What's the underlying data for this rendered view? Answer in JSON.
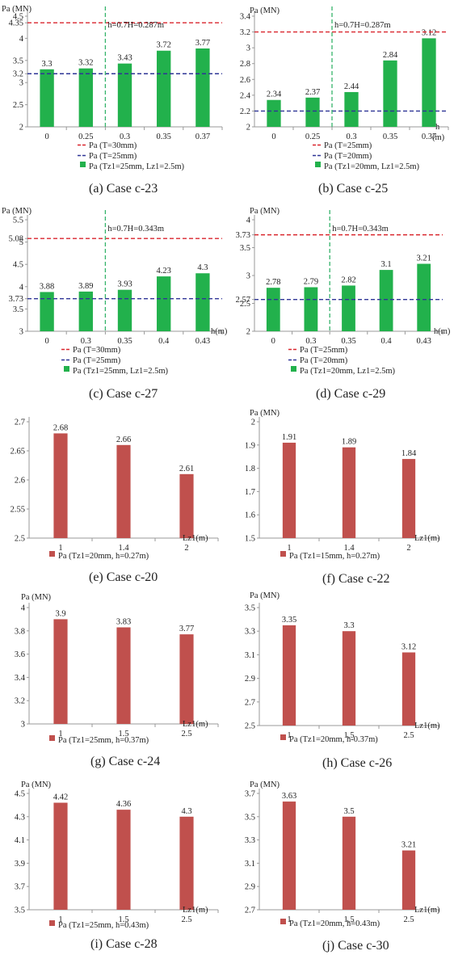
{
  "colors": {
    "green_bar": "#22b14c",
    "red_bar": "#c0504d",
    "red_line": "#d9262e",
    "blue_line": "#2f3596",
    "green_line": "#35b36a",
    "axis": "#999999",
    "grid": "#d9d9d9"
  },
  "chart_data": [
    {
      "id": "a",
      "type": "bar",
      "caption": "(a) Case c-23",
      "ylabel": "Pa (MN)",
      "xlabel": "",
      "yticks": [
        "2",
        "2.5",
        "3",
        "3.2",
        "3.5",
        "4",
        "4.35",
        "4.5"
      ],
      "ylim": [
        2,
        4.5
      ],
      "categories": [
        "0",
        "0.25",
        "0.3",
        "0.35",
        "0.37"
      ],
      "values": [
        3.3,
        3.32,
        3.43,
        3.72,
        3.77
      ],
      "value_labels": [
        "3.3",
        "3.32",
        "3.43",
        "3.72",
        "3.77"
      ],
      "ref_lines": [
        {
          "name": "Pa (T=30mm)",
          "value": 4.35,
          "color": "red"
        },
        {
          "name": "Pa (T=25mm)",
          "value": 3.2,
          "color": "blue"
        }
      ],
      "vline": {
        "label": "h=0.7H=0.287m",
        "position_between": [
          1,
          2
        ]
      },
      "bar_legend": "Pa (Tz1=25mm, Lz1=2.5m)",
      "bar_color": "green"
    },
    {
      "id": "b",
      "type": "bar",
      "caption": "(b) Case c-25",
      "ylabel": "Pa (MN)",
      "xlabel": "h\n(m)",
      "yticks": [
        "2",
        "2.2",
        "2.4",
        "2.6",
        "2.8",
        "3",
        "3.2",
        "3.4"
      ],
      "ylim": [
        2,
        3.4
      ],
      "categories": [
        "0",
        "0.25",
        "0.3",
        "0.35",
        "0.37"
      ],
      "values": [
        2.34,
        2.37,
        2.44,
        2.84,
        3.12
      ],
      "value_labels": [
        "2.34",
        "2.37",
        "2.44",
        "2.84",
        "3.12"
      ],
      "ref_lines": [
        {
          "name": "Pa (T=25mm)",
          "value": 3.2,
          "color": "red"
        },
        {
          "name": "Pa (T=20mm)",
          "value": 2.2,
          "color": "blue"
        }
      ],
      "vline": {
        "label": "h=0.7H=0.287m",
        "position_between": [
          1,
          2
        ]
      },
      "bar_legend": "Pa (Tz1=20mm, Lz1=2.5m)",
      "bar_color": "green"
    },
    {
      "id": "c",
      "type": "bar",
      "caption": "(c) Case c-27",
      "ylabel": "Pa (MN)",
      "xlabel": "h(m)",
      "yticks": [
        "3",
        "3.5",
        "3.73",
        "4",
        "4.5",
        "5",
        "5.08",
        "5.5"
      ],
      "ylim": [
        3,
        5.5
      ],
      "categories": [
        "0",
        "0.3",
        "0.35",
        "0.4",
        "0.43"
      ],
      "values": [
        3.88,
        3.89,
        3.93,
        4.23,
        4.3
      ],
      "value_labels": [
        "3.88",
        "3.89",
        "3.93",
        "4.23",
        "4.3"
      ],
      "ref_lines": [
        {
          "name": "Pa (T=30mm)",
          "value": 5.08,
          "color": "red"
        },
        {
          "name": "Pa (T=25mm)",
          "value": 3.73,
          "color": "blue"
        }
      ],
      "vline": {
        "label": "h=0.7H=0.343m",
        "position_between": [
          1,
          2
        ]
      },
      "bar_legend": "Pa (Tz1=25mm, Lz1=2.5m)",
      "bar_color": "green"
    },
    {
      "id": "d",
      "type": "bar",
      "caption": "(d) Case c-29",
      "ylabel": "Pa (MN)",
      "xlabel": "h(m)",
      "yticks": [
        "2",
        "2.5",
        "2.57",
        "3",
        "3.5",
        "3.73",
        "4"
      ],
      "ylim": [
        2,
        4
      ],
      "categories": [
        "0",
        "0.3",
        "0.35",
        "0.4",
        "0.43"
      ],
      "values": [
        2.78,
        2.79,
        2.82,
        3.1,
        3.21
      ],
      "value_labels": [
        "2.78",
        "2.79",
        "2.82",
        "3.1",
        "3.21"
      ],
      "ref_lines": [
        {
          "name": "Pa (T=25mm)",
          "value": 3.73,
          "color": "red"
        },
        {
          "name": "Pa (T=20mm)",
          "value": 2.57,
          "color": "blue"
        }
      ],
      "vline": {
        "label": "h=0.7H=0.343m",
        "position_between": [
          1,
          2
        ]
      },
      "bar_legend": "Pa (Tz1=20mm, Lz1=2.5m)",
      "bar_color": "green"
    },
    {
      "id": "e",
      "type": "bar",
      "caption": "(e) Case c-20",
      "ylabel": "",
      "xlabel": "Lz1(m)",
      "yticks": [
        "2.5",
        "2.55",
        "2.6",
        "2.65",
        "2.7"
      ],
      "ylim": [
        2.5,
        2.7
      ],
      "categories": [
        "1",
        "1.4",
        "2"
      ],
      "values": [
        2.68,
        2.66,
        2.61
      ],
      "value_labels": [
        "2.68",
        "2.66",
        "2.61"
      ],
      "bar_legend": "Pa (Tz1=20mm, h=0.27m)",
      "bar_color": "red"
    },
    {
      "id": "f",
      "type": "bar",
      "caption": "(f) Case c-22",
      "ylabel": "Pa (MN)",
      "xlabel": "Lz1(m)",
      "yticks": [
        "1.5",
        "1.6",
        "1.7",
        "1.8",
        "1.9",
        "2"
      ],
      "ylim": [
        1.5,
        2
      ],
      "categories": [
        "1",
        "1.4",
        "2"
      ],
      "values": [
        1.91,
        1.89,
        1.84
      ],
      "value_labels": [
        "1.91",
        "1.89",
        "1.84"
      ],
      "bar_legend": "Pa (Tz1=15mm, h=0.27m)",
      "bar_color": "red"
    },
    {
      "id": "g",
      "type": "bar",
      "caption": "(g) Case c-24",
      "ylabel": "Pa (MN)",
      "xlabel": "Lz1(m)",
      "yticks": [
        "3",
        "3.2",
        "3.4",
        "3.6",
        "3.8",
        "4"
      ],
      "ylim": [
        3,
        4
      ],
      "categories": [
        "1",
        "1.5",
        "2.5"
      ],
      "values": [
        3.9,
        3.83,
        3.77
      ],
      "value_labels": [
        "3.9",
        "3.83",
        "3.77"
      ],
      "bar_legend": "Pa (Tz1=25mm, h=0.37m)",
      "bar_color": "red"
    },
    {
      "id": "h",
      "type": "bar",
      "caption": "(h) Case c-26",
      "ylabel": "Pa (MN)",
      "xlabel": "Lz1(m)",
      "yticks": [
        "2.5",
        "2.7",
        "2.9",
        "3.1",
        "3.3",
        "3.5"
      ],
      "ylim": [
        2.5,
        3.5
      ],
      "categories": [
        "1",
        "1.5",
        "2.5"
      ],
      "values": [
        3.35,
        3.3,
        3.12
      ],
      "value_labels": [
        "3.35",
        "3.3",
        "3.12"
      ],
      "bar_legend": "Pa (Tz1=20mm, h-0.37m)",
      "bar_color": "red"
    },
    {
      "id": "i",
      "type": "bar",
      "caption": "(i) Case c-28",
      "ylabel": "Pa (MN)",
      "xlabel": "Lz1(m)",
      "yticks": [
        "3.5",
        "3.7",
        "3.9",
        "4.1",
        "4.3",
        "4.5"
      ],
      "ylim": [
        3.5,
        4.5
      ],
      "categories": [
        "1",
        "1.5",
        "2.5"
      ],
      "values": [
        4.42,
        4.36,
        4.3
      ],
      "value_labels": [
        "4.42",
        "4.36",
        "4.3"
      ],
      "bar_legend": "Pa (Tz1=25mm, h=0.43m)",
      "bar_color": "red"
    },
    {
      "id": "j",
      "type": "bar",
      "caption": "(j) Case c-30",
      "ylabel": "Pa (MN)",
      "xlabel": "Lz1(m)",
      "yticks": [
        "2.7",
        "2.9",
        "3.1",
        "3.3",
        "3.5",
        "3.7"
      ],
      "ylim": [
        2.7,
        3.7
      ],
      "categories": [
        "1",
        "1.5",
        "2.5"
      ],
      "values": [
        3.63,
        3.5,
        3.21
      ],
      "value_labels": [
        "3.63",
        "3.5",
        "3.21"
      ],
      "bar_legend": "Pa (Tz1=20mm, h=0.43m)",
      "bar_color": "red"
    }
  ]
}
